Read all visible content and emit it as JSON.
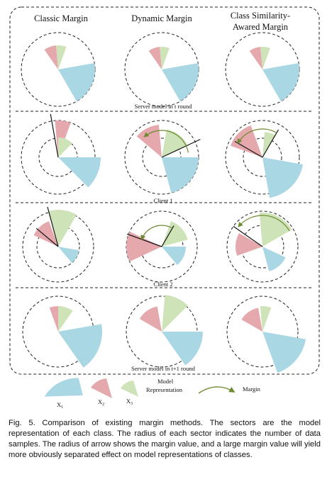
{
  "colors": {
    "x1": "#a9d7e3",
    "x2": "#e5a9ad",
    "x3": "#cfe3b8",
    "margin_arrow": "#6e8a2e",
    "dashed": "#222222"
  },
  "columns": [
    "Classic Margin",
    "Dynamic Margin",
    "Class Similarity-",
    "Awared Margin"
  ],
  "row_labels": {
    "server_t": "Server model in t round",
    "client1": "Client 1",
    "client2": "Client 2",
    "server_t1": "Server model in t+1 round"
  },
  "legend": {
    "x1": "X",
    "x1_sub": "1",
    "x2": "X",
    "x2_sub": "2",
    "x3": "X",
    "x3_sub": "3",
    "model_rep_line1": "Model",
    "model_rep_line2": "Representation",
    "margin": "Margin"
  },
  "caption": "Fig. 5. Comparison of existing margin methods. The sectors are the model representation of each class. The radius of each sector indicates the number of data samples. The radius of arrow shows the margin value, and a large margin value will yield more obviously separated effect on model representations of classes."
}
